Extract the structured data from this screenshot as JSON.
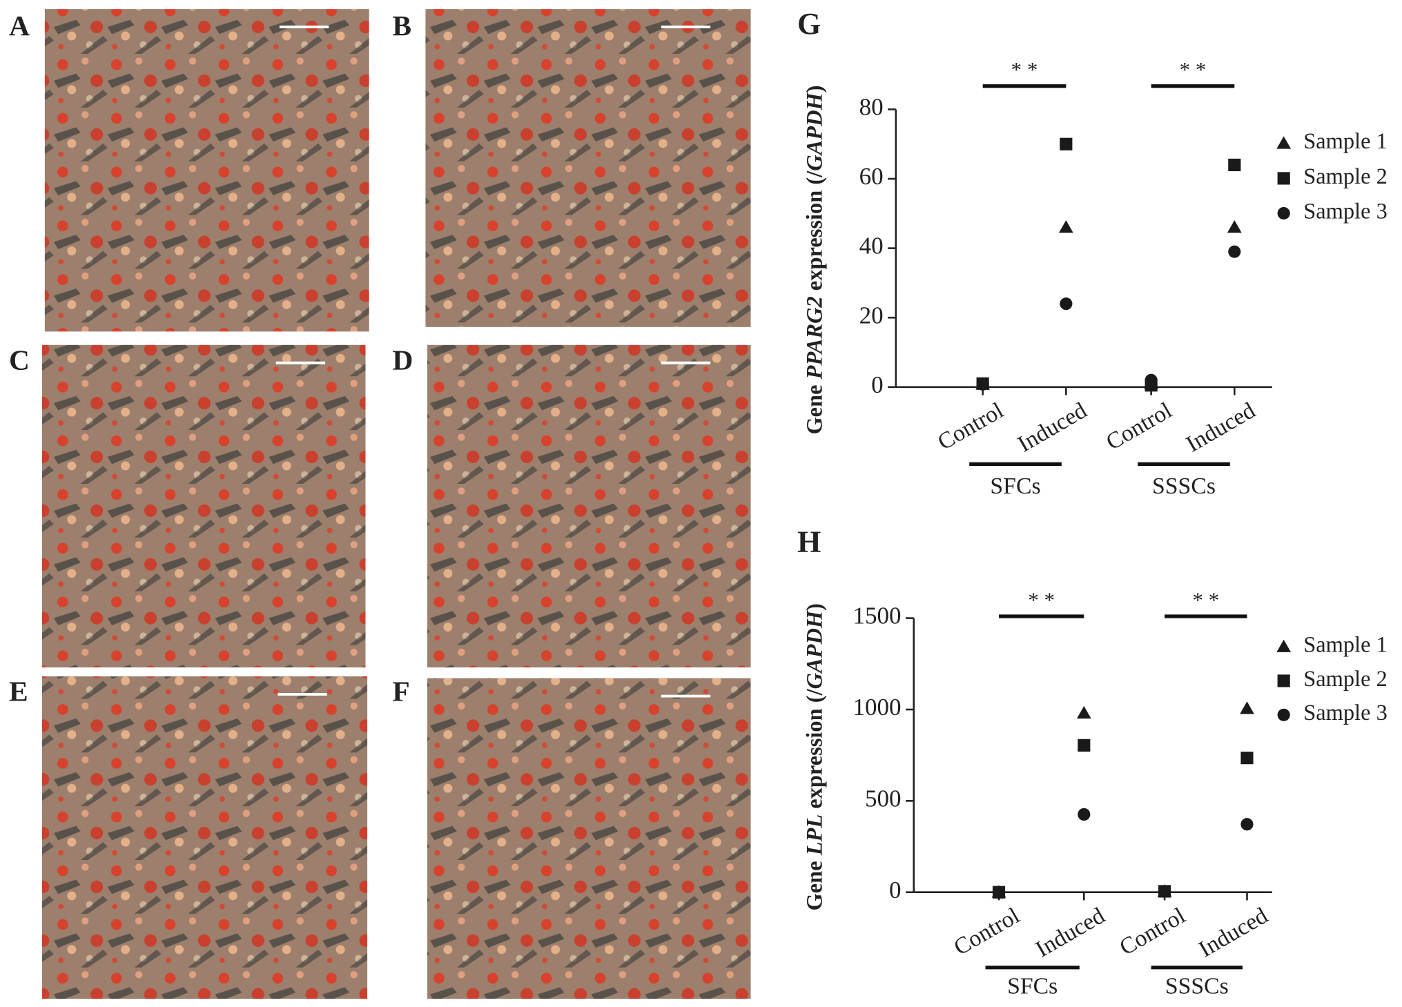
{
  "images": [
    {
      "label": "A"
    },
    {
      "label": "B"
    },
    {
      "label": "C"
    },
    {
      "label": "D"
    },
    {
      "label": "E"
    },
    {
      "label": "F"
    }
  ],
  "chart_data": [
    {
      "type": "scatter",
      "panel": "G",
      "ylabel_parts": [
        "Gene ",
        "PPARG2",
        " expression (/",
        "GAPDH",
        ")"
      ],
      "categories": [
        "Control",
        "Induced",
        "Control",
        "Induced"
      ],
      "groups": [
        {
          "name": "SFCs",
          "significance": "* *"
        },
        {
          "name": "SSSCs",
          "significance": "* *"
        }
      ],
      "ylim": [
        0,
        80
      ],
      "yticks": [
        0,
        20,
        40,
        60,
        80
      ],
      "series": [
        {
          "name": "Sample 1",
          "marker": "triangle",
          "color": "#1a1a1a",
          "values": [
            0.8,
            46,
            1,
            46
          ]
        },
        {
          "name": "Sample 2",
          "marker": "square",
          "color": "#1a1a1a",
          "values": [
            1,
            70,
            0.5,
            64
          ]
        },
        {
          "name": "Sample 3",
          "marker": "circle",
          "color": "#1a1a1a",
          "values": [
            0.8,
            24,
            2,
            39
          ]
        }
      ]
    },
    {
      "type": "scatter",
      "panel": "H",
      "ylabel_parts": [
        "Gene ",
        "LPL",
        " expression (/",
        "GAPDH",
        ")"
      ],
      "categories": [
        "Control",
        "Induced",
        "Control",
        "Induced"
      ],
      "groups": [
        {
          "name": "SFCs",
          "significance": "* *"
        },
        {
          "name": "SSSCs",
          "significance": "* *"
        }
      ],
      "ylim": [
        0,
        1500
      ],
      "yticks": [
        0,
        500,
        1000,
        1500
      ],
      "series": [
        {
          "name": "Sample 1",
          "marker": "triangle",
          "color": "#1a1a1a",
          "values": [
            0,
            980,
            5,
            1005
          ]
        },
        {
          "name": "Sample 2",
          "marker": "square",
          "color": "#1a1a1a",
          "values": [
            0,
            804,
            5,
            735
          ]
        },
        {
          "name": "Sample 3",
          "marker": "circle",
          "color": "#1a1a1a",
          "values": [
            0,
            426,
            5,
            372
          ]
        }
      ]
    }
  ]
}
